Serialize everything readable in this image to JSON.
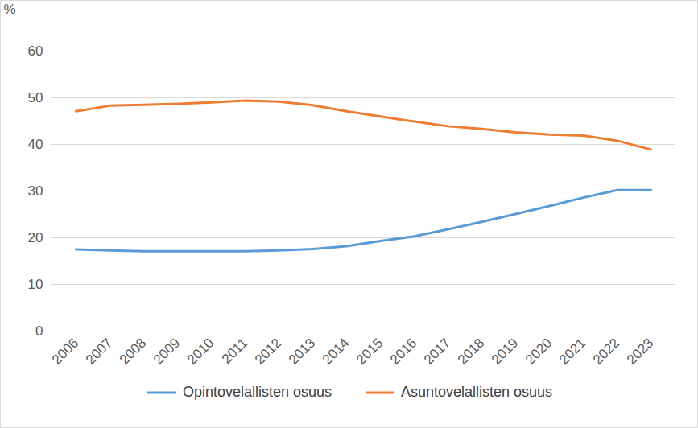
{
  "chart_data": {
    "type": "line",
    "y_label": "%",
    "categories": [
      "2006",
      "2007",
      "2008",
      "2009",
      "2010",
      "2011",
      "2012",
      "2013",
      "2014",
      "2015",
      "2016",
      "2017",
      "2018",
      "2019",
      "2020",
      "2021",
      "2022",
      "2023"
    ],
    "series": [
      {
        "name": "Opintovelallisten osuus",
        "color": "#5b9bd5",
        "values": [
          17.5,
          17.3,
          17.1,
          17.1,
          17.1,
          17.1,
          17.3,
          17.6,
          18.2,
          19.3,
          20.3,
          21.8,
          23.4,
          25.1,
          26.8,
          28.6,
          30.2,
          30.2
        ]
      },
      {
        "name": "Asuntovelallisten osuus",
        "color": "#ed7d31",
        "values": [
          47.1,
          48.3,
          48.5,
          48.7,
          49.0,
          49.4,
          49.2,
          48.4,
          47.1,
          46.0,
          44.9,
          43.9,
          43.3,
          42.6,
          42.1,
          41.9,
          40.8,
          38.9
        ]
      }
    ],
    "ylim": [
      0,
      60
    ],
    "yticks": [
      0,
      10,
      20,
      30,
      40,
      50,
      60
    ],
    "grid": true,
    "legend": "bottom"
  }
}
